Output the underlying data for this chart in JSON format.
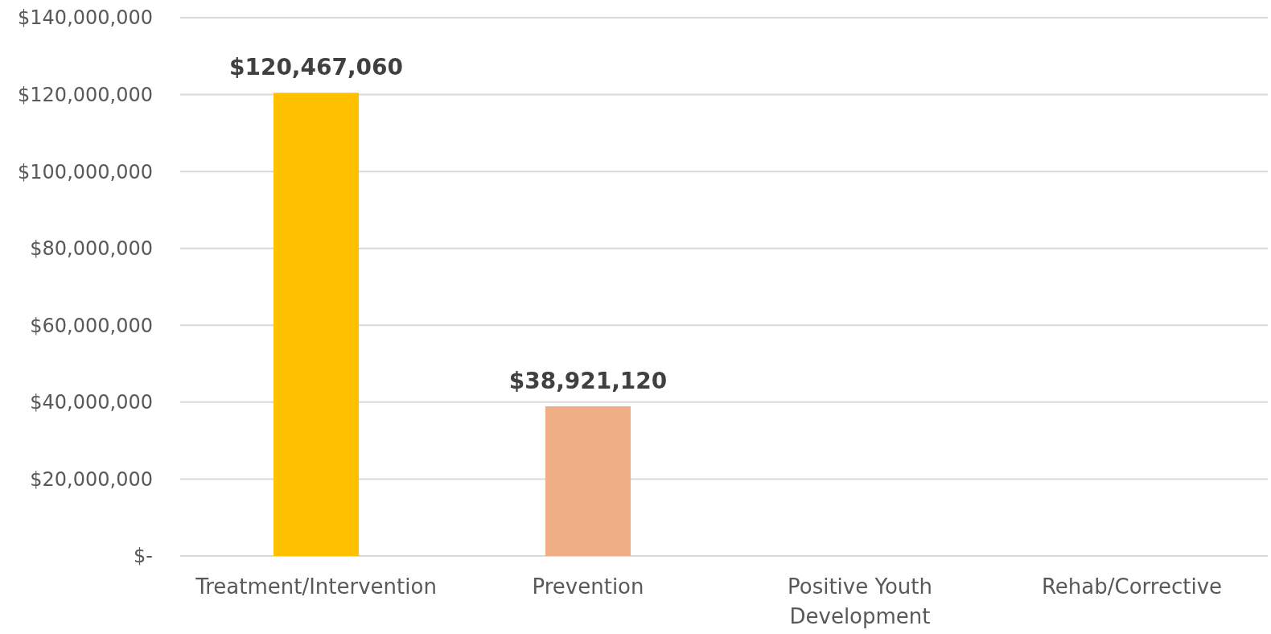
{
  "chart_data": {
    "type": "bar",
    "categories": [
      "Treatment/Intervention",
      "Prevention",
      "Positive Youth Development",
      "Rehab/Corrective"
    ],
    "values": [
      120467060,
      38921120,
      null,
      null
    ],
    "colors": [
      "#ffc000",
      "#efae84",
      null,
      null
    ],
    "value_labels": [
      "$120,467,060",
      "$38,921,120",
      null,
      null
    ],
    "ylim": [
      0,
      140000000
    ],
    "yticks": [
      {
        "value": 0,
        "label": "$-"
      },
      {
        "value": 20000000,
        "label": "$20,000,000"
      },
      {
        "value": 40000000,
        "label": "$40,000,000"
      },
      {
        "value": 60000000,
        "label": "$60,000,000"
      },
      {
        "value": 80000000,
        "label": "$80,000,000"
      },
      {
        "value": 100000000,
        "label": "$100,000,000"
      },
      {
        "value": 120000000,
        "label": "$120,000,000"
      },
      {
        "value": 140000000,
        "label": "$140,000,000"
      }
    ],
    "grid": "y"
  }
}
